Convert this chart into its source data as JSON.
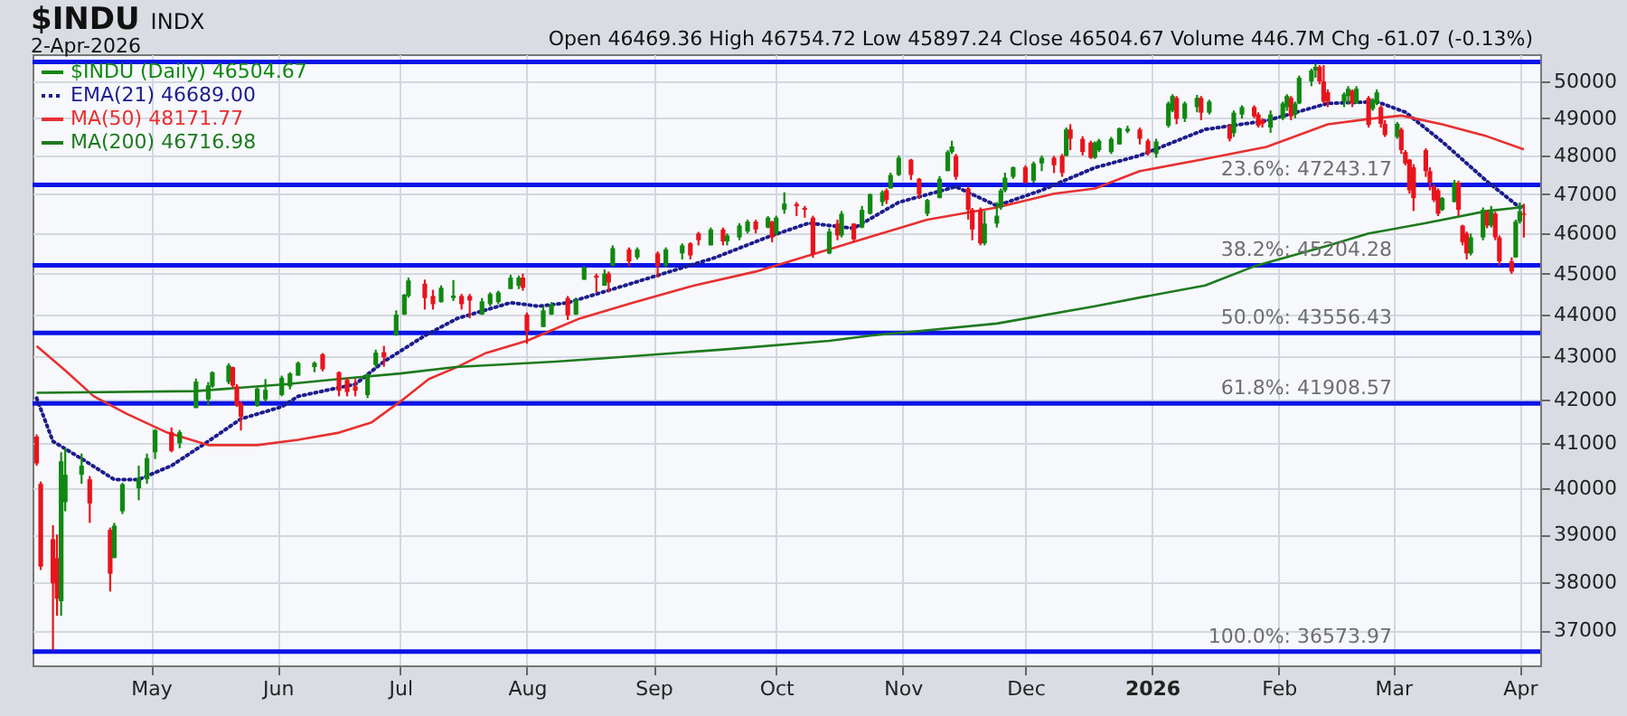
{
  "chart_data": {
    "type": "candlestick",
    "title": "$INDU",
    "subtitle": "2-Apr-2026",
    "annotations": [
      "INDX",
      "Open 46469.36 High 46754.72 Low 45897.24 Close 46504.67 Volume 446.7M Chg -61.07 (-0.13%)"
    ],
    "log": true,
    "grid": true,
    "legend": "top left",
    "ylim": [
      36300,
      50750
    ],
    "yticks": [
      37000,
      38000,
      39000,
      40000,
      41000,
      42000,
      43000,
      44000,
      45000,
      46000,
      47000,
      48000,
      49000,
      50000
    ],
    "xlim": [
      "2025-04-02",
      "2026-04-06"
    ],
    "xticks": [
      {
        "value": "2025-05-01",
        "label": "May"
      },
      {
        "value": "2025-06-01",
        "label": "Jun"
      },
      {
        "value": "2025-07-01",
        "label": "Jul"
      },
      {
        "value": "2025-08-01",
        "label": "Aug"
      },
      {
        "value": "2025-09-01",
        "label": "Sep"
      },
      {
        "value": "2025-10-01",
        "label": "Oct"
      },
      {
        "value": "2025-11-01",
        "label": "Nov"
      },
      {
        "value": "2025-12-01",
        "label": "Dec"
      },
      {
        "value": "2026-01-01",
        "label": "2026"
      },
      {
        "value": "2026-02-01",
        "label": "Feb"
      },
      {
        "value": "2026-03-01",
        "label": "Mar"
      },
      {
        "value": "2026-04-01",
        "label": "Apr"
      }
    ],
    "ref_lines": [
      {
        "axis": "y",
        "value": 50539,
        "label": null,
        "color": "#0a14e6"
      },
      {
        "axis": "y",
        "value": 47243.17,
        "label": "23.6%: 47243.17",
        "color": "#0a14e6"
      },
      {
        "axis": "y",
        "value": 45204.28,
        "label": "38.2%: 45204.28",
        "color": "#0a14e6"
      },
      {
        "axis": "y",
        "value": 43556.43,
        "label": "50.0%: 43556.43",
        "color": "#0a14e6"
      },
      {
        "axis": "y",
        "value": 41908.57,
        "label": "61.8%: 41908.57",
        "color": "#0a14e6"
      },
      {
        "axis": "y",
        "value": 36573.97,
        "label": "100.0%: 36573.97",
        "color": "#0a14e6"
      }
    ],
    "series": [
      {
        "name": "$INDU (Daily) 46504.67",
        "type": "candlestick",
        "color": "#118811",
        "x": [
          "2025-04-03",
          "2025-04-04",
          "2025-04-07",
          "2025-04-08",
          "2025-04-09",
          "2025-04-10",
          "2025-04-14",
          "2025-04-16",
          "2025-04-21",
          "2025-04-22",
          "2025-04-24",
          "2025-04-28",
          "2025-04-30",
          "2025-05-02",
          "2025-05-06",
          "2025-05-08",
          "2025-05-12",
          "2025-05-15",
          "2025-05-16",
          "2025-05-20",
          "2025-05-21",
          "2025-05-22",
          "2025-05-23",
          "2025-05-27",
          "2025-05-29",
          "2025-06-02",
          "2025-06-04",
          "2025-06-06",
          "2025-06-10",
          "2025-06-12",
          "2025-06-16",
          "2025-06-18",
          "2025-06-20",
          "2025-06-23",
          "2025-06-25",
          "2025-06-27",
          "2025-06-30",
          "2025-07-02",
          "2025-07-03",
          "2025-07-07",
          "2025-07-09",
          "2025-07-11",
          "2025-07-14",
          "2025-07-16",
          "2025-07-18",
          "2025-07-21",
          "2025-07-23",
          "2025-07-25",
          "2025-07-28",
          "2025-07-30",
          "2025-07-31",
          "2025-08-01",
          "2025-08-05",
          "2025-08-07",
          "2025-08-11",
          "2025-08-13",
          "2025-08-15",
          "2025-08-18",
          "2025-08-20",
          "2025-08-21",
          "2025-08-22",
          "2025-08-26",
          "2025-08-28",
          "2025-09-02",
          "2025-09-04",
          "2025-09-08",
          "2025-09-10",
          "2025-09-12",
          "2025-09-15",
          "2025-09-18",
          "2025-09-19",
          "2025-09-22",
          "2025-09-24",
          "2025-09-26",
          "2025-09-29",
          "2025-09-30",
          "2025-10-01",
          "2025-10-03",
          "2025-10-06",
          "2025-10-08",
          "2025-10-10",
          "2025-10-14",
          "2025-10-16",
          "2025-10-17",
          "2025-10-20",
          "2025-10-22",
          "2025-10-24",
          "2025-10-27",
          "2025-10-28",
          "2025-10-29",
          "2025-10-31",
          "2025-11-03",
          "2025-11-05",
          "2025-11-07",
          "2025-11-10",
          "2025-11-12",
          "2025-11-13",
          "2025-11-14",
          "2025-11-17",
          "2025-11-18",
          "2025-11-20",
          "2025-11-21",
          "2025-11-24",
          "2025-11-25",
          "2025-11-26",
          "2025-11-28",
          "2025-12-01",
          "2025-12-03",
          "2025-12-05",
          "2025-12-08",
          "2025-12-10",
          "2025-12-11",
          "2025-12-12",
          "2025-12-15",
          "2025-12-17",
          "2025-12-18",
          "2025-12-19",
          "2025-12-22",
          "2025-12-24",
          "2025-12-26",
          "2025-12-29",
          "2025-12-31",
          "2026-01-02",
          "2026-01-05",
          "2026-01-06",
          "2026-01-07",
          "2026-01-09",
          "2026-01-12",
          "2026-01-13",
          "2026-01-15",
          "2026-01-20",
          "2026-01-21",
          "2026-01-23",
          "2026-01-26",
          "2026-01-27",
          "2026-01-28",
          "2026-01-30",
          "2026-02-02",
          "2026-02-03",
          "2026-02-04",
          "2026-02-05",
          "2026-02-06",
          "2026-02-09",
          "2026-02-10",
          "2026-02-11",
          "2026-02-12",
          "2026-02-13",
          "2026-02-17",
          "2026-02-18",
          "2026-02-19",
          "2026-02-20",
          "2026-02-23",
          "2026-02-24",
          "2026-02-25",
          "2026-02-26",
          "2026-02-27",
          "2026-03-02",
          "2026-03-03",
          "2026-03-04",
          "2026-03-05",
          "2026-03-06",
          "2026-03-09",
          "2026-03-10",
          "2026-03-11",
          "2026-03-12",
          "2026-03-13",
          "2026-03-16",
          "2026-03-17",
          "2026-03-18",
          "2026-03-19",
          "2026-03-20",
          "2026-03-23",
          "2026-03-24",
          "2026-03-25",
          "2026-03-26",
          "2026-03-27",
          "2026-03-30",
          "2026-03-31",
          "2026-04-01",
          "2026-04-02"
        ],
        "ohlc": [
          [
            41150,
            41200,
            40500,
            40550
          ],
          [
            40100,
            40150,
            38250,
            38320
          ],
          [
            38900,
            39200,
            36610,
            37970
          ],
          [
            38500,
            39000,
            37300,
            37650
          ],
          [
            37600,
            40800,
            37300,
            40600
          ],
          [
            39700,
            40890,
            39500,
            40300
          ],
          [
            40300,
            40770,
            40100,
            40500
          ],
          [
            40200,
            40270,
            39250,
            39670
          ],
          [
            39100,
            39150,
            37800,
            38170
          ],
          [
            38500,
            39250,
            38500,
            39190
          ],
          [
            39500,
            40120,
            39440,
            40090
          ],
          [
            40000,
            40500,
            39740,
            40230
          ],
          [
            40200,
            40770,
            40100,
            40670
          ],
          [
            40800,
            41320,
            40650,
            41300
          ],
          [
            41250,
            41360,
            40800,
            40830
          ],
          [
            41000,
            41300,
            40890,
            41250
          ],
          [
            41800,
            42480,
            41800,
            42410
          ],
          [
            42000,
            42400,
            41850,
            42320
          ],
          [
            42300,
            42650,
            42270,
            42630
          ],
          [
            42400,
            42840,
            42350,
            42790
          ],
          [
            42750,
            42760,
            42270,
            42320
          ],
          [
            42300,
            42350,
            41830,
            41860
          ],
          [
            41900,
            41950,
            41290,
            41600
          ],
          [
            41850,
            42280,
            41830,
            42250
          ],
          [
            42000,
            42470,
            41950,
            42220
          ],
          [
            42100,
            42550,
            42070,
            42500
          ],
          [
            42300,
            42630,
            42230,
            42600
          ],
          [
            42550,
            42880,
            42550,
            42850
          ],
          [
            42750,
            42880,
            42630,
            42850
          ],
          [
            43050,
            43080,
            42650,
            42700
          ],
          [
            42630,
            42650,
            42070,
            42200
          ],
          [
            42450,
            42500,
            42070,
            42170
          ],
          [
            42300,
            42470,
            42070,
            42200
          ],
          [
            42100,
            42600,
            42030,
            42580
          ],
          [
            42800,
            43160,
            42750,
            43090
          ],
          [
            43100,
            43250,
            42760,
            42980
          ],
          [
            43500,
            44100,
            43490,
            44000
          ],
          [
            44000,
            44500,
            43990,
            44480
          ],
          [
            44450,
            44900,
            44410,
            44830
          ],
          [
            44750,
            44850,
            44120,
            44400
          ],
          [
            44450,
            44600,
            44120,
            44250
          ],
          [
            44300,
            44710,
            44290,
            44650
          ],
          [
            44400,
            44840,
            44330,
            44460
          ],
          [
            44450,
            44500,
            44120,
            44250
          ],
          [
            44450,
            44500,
            43910,
            44340
          ],
          [
            44000,
            44400,
            43990,
            44320
          ],
          [
            44250,
            44540,
            44200,
            44500
          ],
          [
            44300,
            44580,
            44250,
            44540
          ],
          [
            44620,
            44970,
            44620,
            44900
          ],
          [
            44700,
            44950,
            44620,
            44900
          ],
          [
            44900,
            45000,
            44580,
            44650
          ],
          [
            44000,
            44050,
            43300,
            43590
          ],
          [
            43700,
            44200,
            43700,
            44100
          ],
          [
            44000,
            44300,
            43990,
            44250
          ],
          [
            44400,
            44450,
            43870,
            43980
          ],
          [
            44000,
            44410,
            43990,
            44350
          ],
          [
            44850,
            45180,
            44840,
            45150
          ],
          [
            44950,
            45000,
            44540,
            44900
          ],
          [
            44700,
            45100,
            44700,
            45000
          ],
          [
            45000,
            45050,
            44540,
            44780
          ],
          [
            45200,
            45700,
            45180,
            45630
          ],
          [
            45600,
            45650,
            45180,
            45300
          ],
          [
            45400,
            45650,
            45350,
            45600
          ],
          [
            45500,
            45550,
            44900,
            45180
          ],
          [
            45200,
            45650,
            45150,
            45600
          ],
          [
            45500,
            45750,
            45350,
            45700
          ],
          [
            45750,
            45780,
            45350,
            45450
          ],
          [
            46000,
            46040,
            45700,
            45830
          ],
          [
            45700,
            46150,
            45700,
            46100
          ],
          [
            46100,
            46150,
            45700,
            45800
          ],
          [
            45800,
            46000,
            45700,
            45950
          ],
          [
            45900,
            46260,
            45830,
            46200
          ],
          [
            46050,
            46350,
            46000,
            46300
          ],
          [
            46300,
            46350,
            46000,
            46100
          ],
          [
            46150,
            46440,
            46130,
            46400
          ],
          [
            46300,
            46320,
            45780,
            45900
          ],
          [
            46000,
            46450,
            45950,
            46400
          ],
          [
            46600,
            47050,
            46500,
            46760
          ],
          [
            46750,
            46800,
            46440,
            46690
          ],
          [
            46650,
            46700,
            46400,
            46600
          ],
          [
            46400,
            46450,
            45390,
            45480
          ],
          [
            45500,
            46130,
            45480,
            46050
          ],
          [
            46250,
            46350,
            45830,
            45950
          ],
          [
            45950,
            46570,
            45900,
            46500
          ],
          [
            46250,
            46260,
            45780,
            45850
          ],
          [
            46150,
            46700,
            46130,
            46600
          ],
          [
            46500,
            47016,
            46480,
            47000
          ],
          [
            46800,
            47100,
            46700,
            47050
          ],
          [
            47100,
            47150,
            46750,
            46850
          ],
          [
            47150,
            47560,
            47150,
            47500
          ],
          [
            47500,
            48010,
            47470,
            47950
          ],
          [
            47900,
            47920,
            47370,
            47500
          ],
          [
            47400,
            47420,
            46880,
            47000
          ],
          [
            46500,
            46880,
            46440,
            46850
          ],
          [
            46900,
            47470,
            46900,
            47400
          ],
          [
            47600,
            48150,
            47600,
            48100
          ],
          [
            48100,
            48400,
            48050,
            48250
          ],
          [
            48000,
            48050,
            47370,
            47450
          ],
          [
            47150,
            47200,
            46350,
            46600
          ],
          [
            46600,
            46650,
            45830,
            46100
          ],
          [
            46600,
            46660,
            45700,
            45750
          ],
          [
            45750,
            46570,
            45700,
            46250
          ],
          [
            46250,
            46800,
            46150,
            46450
          ],
          [
            46660,
            47150,
            46600,
            47100
          ],
          [
            47100,
            47560,
            47050,
            47430
          ],
          [
            47450,
            47720,
            47400,
            47700
          ],
          [
            47700,
            47750,
            47280,
            47300
          ],
          [
            47350,
            47850,
            47300,
            47800
          ],
          [
            47800,
            48010,
            47600,
            47950
          ],
          [
            47950,
            48000,
            47550,
            47750
          ],
          [
            48000,
            48050,
            47450,
            47550
          ],
          [
            48000,
            48750,
            47980,
            48700
          ],
          [
            48700,
            48840,
            48150,
            48450
          ],
          [
            48450,
            48520,
            48010,
            48100
          ],
          [
            48350,
            48400,
            47920,
            47950
          ],
          [
            47950,
            48380,
            47920,
            48350
          ],
          [
            48150,
            48450,
            48100,
            48400
          ],
          [
            48100,
            48500,
            48050,
            48450
          ],
          [
            48300,
            48750,
            48300,
            48730
          ],
          [
            48650,
            48800,
            48600,
            48720
          ],
          [
            48700,
            48750,
            48300,
            48450
          ],
          [
            48400,
            48450,
            48010,
            48060
          ],
          [
            48050,
            48450,
            47950,
            48380
          ],
          [
            48800,
            49450,
            48750,
            49400
          ],
          [
            49200,
            49650,
            49160,
            49600
          ],
          [
            49550,
            49600,
            48840,
            48980
          ],
          [
            48990,
            49450,
            48900,
            49400
          ],
          [
            49300,
            49630,
            49160,
            49550
          ],
          [
            49550,
            49600,
            48950,
            49150
          ],
          [
            49150,
            49500,
            49100,
            49450
          ],
          [
            48800,
            48850,
            48380,
            48450
          ],
          [
            48600,
            49210,
            48500,
            49150
          ],
          [
            49100,
            49350,
            48990,
            49300
          ],
          [
            49300,
            49350,
            49000,
            49050
          ],
          [
            49100,
            49160,
            48750,
            48800
          ],
          [
            48950,
            49000,
            48750,
            48850
          ],
          [
            48750,
            49210,
            48610,
            49100
          ],
          [
            49000,
            49450,
            48950,
            49400
          ],
          [
            49300,
            49650,
            49200,
            49600
          ],
          [
            49550,
            49600,
            48950,
            49050
          ],
          [
            49100,
            49450,
            49000,
            49400
          ],
          [
            49400,
            50160,
            49380,
            50100
          ],
          [
            50000,
            50350,
            49870,
            50300
          ],
          [
            50300,
            50500,
            50100,
            50400
          ],
          [
            50400,
            50450,
            49920,
            50000
          ],
          [
            50000,
            50450,
            49400,
            49450
          ],
          [
            49700,
            49780,
            49300,
            49450
          ],
          [
            49450,
            49700,
            49300,
            49650
          ],
          [
            49600,
            49870,
            49400,
            49800
          ],
          [
            49750,
            49780,
            49300,
            49400
          ],
          [
            49400,
            49870,
            49400,
            49800
          ],
          [
            49550,
            49600,
            48750,
            48820
          ],
          [
            49250,
            49540,
            49200,
            49500
          ],
          [
            49400,
            49780,
            49350,
            49700
          ],
          [
            49300,
            49350,
            48750,
            48850
          ],
          [
            48850,
            48950,
            48500,
            48550
          ],
          [
            48500,
            48900,
            48450,
            48850
          ],
          [
            48700,
            48750,
            48050,
            48150
          ],
          [
            48100,
            48150,
            47750,
            47800
          ],
          [
            47900,
            47920,
            47016,
            47100
          ],
          [
            47700,
            47780,
            46570,
            46900
          ],
          [
            48150,
            48200,
            47450,
            47600
          ],
          [
            47600,
            47700,
            47100,
            47300
          ],
          [
            47200,
            47250,
            46800,
            46850
          ],
          [
            47100,
            47150,
            46440,
            46500
          ],
          [
            46600,
            46930,
            46570,
            46900
          ],
          [
            46800,
            47370,
            46790,
            47300
          ],
          [
            47300,
            47350,
            46440,
            46600
          ],
          [
            46200,
            46220,
            45700,
            45780
          ],
          [
            46000,
            46050,
            45350,
            45500
          ],
          [
            45500,
            46000,
            45450,
            45900
          ],
          [
            45900,
            46660,
            45830,
            46600
          ],
          [
            46550,
            46570,
            46130,
            46200
          ],
          [
            46200,
            46700,
            46150,
            46550
          ],
          [
            46500,
            46550,
            45830,
            45900
          ],
          [
            45900,
            45950,
            45200,
            45300
          ],
          [
            45300,
            45400,
            44990,
            45050
          ],
          [
            45400,
            46350,
            45390,
            46300
          ],
          [
            46300,
            46790,
            46250,
            46566
          ],
          [
            46469.36,
            46754.72,
            45897.24,
            46504.67
          ]
        ],
        "colors": [
          "#e8141c",
          "#e8141c",
          "#e8141c",
          "#e8141c",
          "#118811",
          "#118811",
          "#118811",
          "#e8141c",
          "#e8141c",
          "#118811",
          "#118811",
          "#118811",
          "#118811",
          "#118811",
          "#e8141c",
          "#118811",
          "#118811",
          "#118811",
          "#118811",
          "#118811",
          "#e8141c",
          "#e8141c",
          "#e8141c",
          "#118811",
          "#118811",
          "#118811",
          "#118811",
          "#118811",
          "#118811",
          "#e8141c",
          "#e8141c",
          "#e8141c",
          "#e8141c",
          "#118811",
          "#118811",
          "#e8141c",
          "#118811",
          "#118811",
          "#118811",
          "#e8141c",
          "#e8141c",
          "#118811",
          "#118811",
          "#e8141c",
          "#e8141c",
          "#118811",
          "#118811",
          "#118811",
          "#118811",
          "#118811",
          "#e8141c",
          "#e8141c",
          "#118811",
          "#118811",
          "#e8141c",
          "#118811",
          "#118811",
          "#e8141c",
          "#118811",
          "#e8141c",
          "#118811",
          "#e8141c",
          "#118811",
          "#e8141c",
          "#118811",
          "#118811",
          "#e8141c",
          "#e8141c",
          "#118811",
          "#e8141c",
          "#118811",
          "#118811",
          "#118811",
          "#e8141c",
          "#118811",
          "#e8141c",
          "#118811",
          "#118811",
          "#e8141c",
          "#e8141c",
          "#e8141c",
          "#118811",
          "#e8141c",
          "#118811",
          "#e8141c",
          "#118811",
          "#118811",
          "#118811",
          "#e8141c",
          "#118811",
          "#118811",
          "#e8141c",
          "#e8141c",
          "#118811",
          "#118811",
          "#118811",
          "#118811",
          "#e8141c",
          "#e8141c",
          "#e8141c",
          "#e8141c",
          "#118811",
          "#118811",
          "#118811",
          "#118811",
          "#118811",
          "#e8141c",
          "#118811",
          "#118811",
          "#e8141c",
          "#e8141c",
          "#118811",
          "#e8141c",
          "#e8141c",
          "#e8141c",
          "#118811",
          "#118811",
          "#118811",
          "#118811",
          "#118811",
          "#e8141c",
          "#e8141c",
          "#118811",
          "#118811",
          "#118811",
          "#e8141c",
          "#118811",
          "#118811",
          "#e8141c",
          "#118811",
          "#e8141c",
          "#118811",
          "#118811",
          "#e8141c",
          "#e8141c",
          "#e8141c",
          "#118811",
          "#118811",
          "#118811",
          "#e8141c",
          "#118811",
          "#118811",
          "#118811",
          "#118811",
          "#e8141c",
          "#e8141c",
          "#e8141c",
          "#118811",
          "#118811",
          "#e8141c",
          "#118811",
          "#e8141c",
          "#118811",
          "#118811",
          "#e8141c",
          "#e8141c",
          "#118811",
          "#e8141c",
          "#e8141c",
          "#e8141c",
          "#e8141c",
          "#e8141c",
          "#e8141c",
          "#e8141c",
          "#e8141c",
          "#118811",
          "#118811",
          "#e8141c",
          "#e8141c",
          "#e8141c",
          "#118811",
          "#118811",
          "#e8141c",
          "#118811",
          "#e8141c",
          "#e8141c",
          "#e8141c",
          "#118811",
          "#118811",
          "#e8141c"
        ]
      },
      {
        "name": "EMA(21) 46689.00",
        "type": "line",
        "color": "#1c1c8c",
        "line_style": "dotted",
        "x": [
          "2025-04-03",
          "2025-04-07",
          "2025-04-14",
          "2025-04-22",
          "2025-04-28",
          "2025-05-06",
          "2025-05-15",
          "2025-05-23",
          "2025-06-02",
          "2025-06-06",
          "2025-06-20",
          "2025-06-27",
          "2025-07-07",
          "2025-07-15",
          "2025-07-28",
          "2025-08-04",
          "2025-08-11",
          "2025-08-25",
          "2025-09-05",
          "2025-09-16",
          "2025-09-29",
          "2025-10-09",
          "2025-10-20",
          "2025-10-31",
          "2025-11-14",
          "2025-11-24",
          "2025-12-05",
          "2025-12-18",
          "2025-12-29",
          "2026-01-14",
          "2026-01-29",
          "2026-02-13",
          "2026-02-25",
          "2026-03-04",
          "2026-03-13",
          "2026-03-24",
          "2026-04-01",
          "2026-04-02"
        ],
        "values": [
          42030,
          41045,
          40655,
          40195,
          40195,
          40500,
          41045,
          41553,
          41830,
          42070,
          42351,
          42880,
          43493,
          43908,
          44286,
          44200,
          44286,
          44708,
          45049,
          45393,
          45913,
          46263,
          46131,
          46793,
          47195,
          46704,
          47105,
          47691,
          48009,
          48700,
          48934,
          49400,
          49447,
          49164,
          48376,
          47330,
          46660,
          46689.0
        ]
      },
      {
        "name": "MA(50) 48171.77",
        "type": "line",
        "color": "#e83030",
        "line_style": "solid",
        "x": [
          "2025-04-03",
          "2025-04-10",
          "2025-04-17",
          "2025-04-25",
          "2025-05-05",
          "2025-05-15",
          "2025-05-27",
          "2025-06-06",
          "2025-06-16",
          "2025-06-24",
          "2025-07-01",
          "2025-07-08",
          "2025-07-15",
          "2025-07-22",
          "2025-08-01",
          "2025-08-08",
          "2025-08-14",
          "2025-08-27",
          "2025-09-11",
          "2025-09-26",
          "2025-10-10",
          "2025-10-24",
          "2025-11-07",
          "2025-11-24",
          "2025-12-08",
          "2025-12-18",
          "2025-12-29",
          "2026-01-14",
          "2026-01-29",
          "2026-02-13",
          "2026-02-23",
          "2026-03-03",
          "2026-03-13",
          "2026-03-24",
          "2026-04-02"
        ],
        "values": [
          43246,
          42673,
          42070,
          41670,
          41240,
          40960,
          40960,
          41080,
          41240,
          41475,
          41950,
          42470,
          42755,
          43082,
          43370,
          43660,
          43908,
          44286,
          44708,
          45049,
          45479,
          45913,
          46351,
          46660,
          47016,
          47150,
          47600,
          47918,
          48238,
          48838,
          48980,
          49071,
          48838,
          48515,
          48171.77
        ]
      },
      {
        "name": "MA(200) 46716.98",
        "type": "line",
        "color": "#1e7a1e",
        "line_style": "solid",
        "x": [
          "2025-04-03",
          "2025-05-12",
          "2025-06-03",
          "2025-06-16",
          "2025-07-01",
          "2025-07-15",
          "2025-08-08",
          "2025-08-20",
          "2025-09-18",
          "2025-10-14",
          "2025-10-24",
          "2025-11-24",
          "2025-12-18",
          "2025-12-29",
          "2026-01-14",
          "2026-01-26",
          "2026-02-13",
          "2026-02-23",
          "2026-03-09",
          "2026-03-24",
          "2026-04-01",
          "2026-04-02"
        ],
        "values": [
          42150,
          42190,
          42351,
          42470,
          42600,
          42755,
          42880,
          42960,
          43164,
          43370,
          43493,
          43783,
          44200,
          44412,
          44708,
          45178,
          45695,
          46000,
          46263,
          46571,
          46660,
          46716.98
        ]
      }
    ]
  }
}
